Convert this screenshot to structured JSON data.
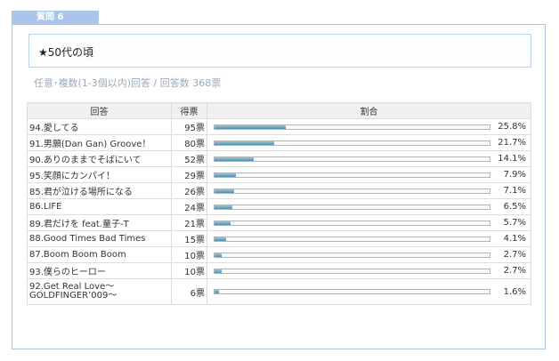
{
  "tab": {
    "label": "質問 6"
  },
  "question": {
    "text": "★50代の頃"
  },
  "meta": {
    "text": "任意･複数(1-3個以内)回答 / 回答数 368票"
  },
  "table": {
    "headers": {
      "answer": "回答",
      "votes": "得票",
      "ratio": "割合"
    },
    "rows": [
      {
        "answer": "94.愛してる",
        "votes": "95票",
        "pct": "25.8%",
        "ratio": 0.258
      },
      {
        "answer": "91.男願(Dan Gan) Groove！",
        "votes": "80票",
        "pct": "21.7%",
        "ratio": 0.217
      },
      {
        "answer": "90.ありのままでそばにいて",
        "votes": "52票",
        "pct": "14.1%",
        "ratio": 0.141
      },
      {
        "answer": "95.笑顔にカンパイ！",
        "votes": "29票",
        "pct": "7.9%",
        "ratio": 0.079
      },
      {
        "answer": "85.君が泣ける場所になる",
        "votes": "26票",
        "pct": "7.1%",
        "ratio": 0.071
      },
      {
        "answer": "86.LIFE",
        "votes": "24票",
        "pct": "6.5%",
        "ratio": 0.065
      },
      {
        "answer": "89.君だけを feat.童子-T",
        "votes": "21票",
        "pct": "5.7%",
        "ratio": 0.057
      },
      {
        "answer": "88.Good Times Bad Times",
        "votes": "15票",
        "pct": "4.1%",
        "ratio": 0.041
      },
      {
        "answer": "87.Boom Boom Boom",
        "votes": "10票",
        "pct": "2.7%",
        "ratio": 0.027
      },
      {
        "answer": "93.僕らのヒーロー",
        "votes": "10票",
        "pct": "2.7%",
        "ratio": 0.027
      },
      {
        "answer": "92.Get Real Love～GOLDFINGER’009～",
        "votes": "6票",
        "pct": "1.6%",
        "ratio": 0.016
      }
    ]
  },
  "colors": {
    "tab": "#a9c6e8",
    "bar": "#4e8fb2",
    "meta_text": "#99aabb"
  }
}
